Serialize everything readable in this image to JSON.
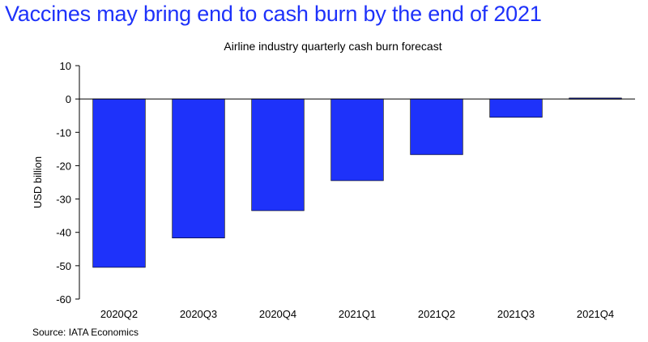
{
  "headline": "Vaccines may bring end to cash burn by the end of 2021",
  "source": "Source: IATA Economics",
  "colors": {
    "bar": "#1e32fa",
    "headline": "#1e32fa",
    "bar_edge": "#000000"
  },
  "chart_data": {
    "type": "bar",
    "title": "Airline industry quarterly cash burn forecast",
    "xlabel": "",
    "ylabel": "USD billion",
    "categories": [
      "2020Q2",
      "2020Q3",
      "2020Q4",
      "2021Q1",
      "2021Q2",
      "2021Q3",
      "2021Q4"
    ],
    "values": [
      -50.5,
      -41.7,
      -33.5,
      -24.5,
      -16.7,
      -5.5,
      0.3
    ],
    "ylim": [
      -60,
      10
    ],
    "yticks": [
      10,
      0,
      -10,
      -20,
      -30,
      -40,
      -50,
      -60
    ],
    "grid": false,
    "legend": "none"
  }
}
